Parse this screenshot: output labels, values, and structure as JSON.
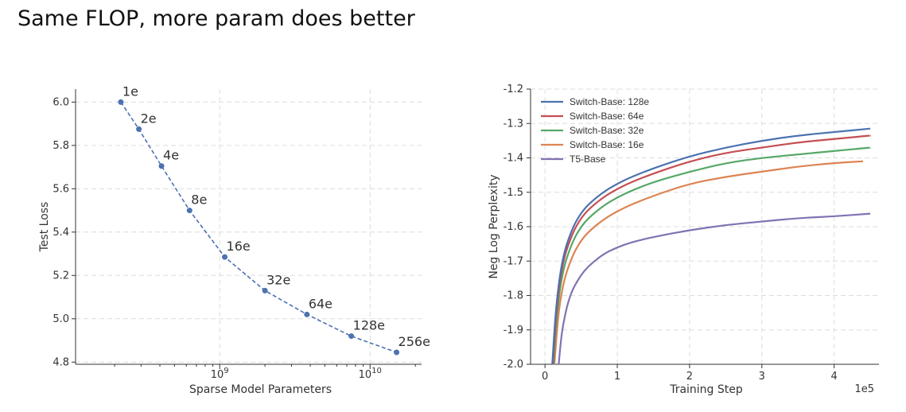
{
  "slide_title": "Same FLOP, more param does better",
  "chart_data": [
    {
      "type": "line",
      "xlabel": "Sparse Model Parameters",
      "ylabel": "Test Loss",
      "x_scale": "log",
      "xlim": [
        110000000,
        22000000000
      ],
      "ylim": [
        4.79,
        6.06
      ],
      "grid": true,
      "xticks": [
        {
          "value": 1000000000,
          "base": "10",
          "exp": "9"
        },
        {
          "value": 10000000000,
          "base": "10",
          "exp": "10"
        }
      ],
      "yticks": [
        "4.8",
        "5.0",
        "5.2",
        "5.4",
        "5.6",
        "5.8",
        "6.0"
      ],
      "line_color": "#4c72b0",
      "line_style": "dashed",
      "series": [
        {
          "points": [
            {
              "label": "1e",
              "x": 220000000,
              "y": 6.0
            },
            {
              "label": "2e",
              "x": 290000000,
              "y": 5.875
            },
            {
              "label": "4e",
              "x": 410000000,
              "y": 5.705
            },
            {
              "label": "8e",
              "x": 630000000,
              "y": 5.5
            },
            {
              "label": "16e",
              "x": 1080000000,
              "y": 5.285
            },
            {
              "label": "32e",
              "x": 2000000000,
              "y": 5.13
            },
            {
              "label": "64e",
              "x": 3800000000,
              "y": 5.02
            },
            {
              "label": "128e",
              "x": 7500000000,
              "y": 4.92
            },
            {
              "label": "256e",
              "x": 15000000000,
              "y": 4.845
            }
          ]
        }
      ]
    },
    {
      "type": "line",
      "xlabel": "Training Step",
      "ylabel": "Neg Log Perplexity",
      "x_multiplier": "1e5",
      "xlim": [
        -0.2,
        4.62
      ],
      "ylim": [
        -2.0,
        -1.2
      ],
      "grid": true,
      "xticks": [
        "0",
        "1",
        "2",
        "3",
        "4"
      ],
      "yticks": [
        "-1.2",
        "-1.3",
        "-1.4",
        "-1.5",
        "-1.6",
        "-1.7",
        "-1.8",
        "-1.9",
        "-2.0"
      ],
      "legend_position": "top-left",
      "series": [
        {
          "name": "Switch-Base: 128e",
          "color": "#4c72b0",
          "x": [
            0.1,
            0.15,
            0.2,
            0.25,
            0.3,
            0.4,
            0.5,
            0.6,
            0.8,
            1.0,
            1.2,
            1.5,
            2.0,
            2.5,
            3.0,
            3.5,
            4.0,
            4.5
          ],
          "y": [
            -2.0,
            -1.84,
            -1.75,
            -1.69,
            -1.65,
            -1.595,
            -1.56,
            -1.535,
            -1.5,
            -1.475,
            -1.455,
            -1.43,
            -1.395,
            -1.37,
            -1.35,
            -1.335,
            -1.325,
            -1.315
          ]
        },
        {
          "name": "Switch-Base: 64e",
          "color": "#c44e52",
          "x": [
            0.11,
            0.15,
            0.2,
            0.25,
            0.3,
            0.4,
            0.5,
            0.6,
            0.8,
            1.0,
            1.2,
            1.5,
            2.0,
            2.5,
            3.0,
            3.5,
            4.0,
            4.5
          ],
          "y": [
            -2.0,
            -1.86,
            -1.765,
            -1.705,
            -1.665,
            -1.61,
            -1.575,
            -1.55,
            -1.515,
            -1.49,
            -1.47,
            -1.445,
            -1.41,
            -1.385,
            -1.37,
            -1.355,
            -1.345,
            -1.335
          ]
        },
        {
          "name": "Switch-Base: 32e",
          "color": "#55a868",
          "x": [
            0.12,
            0.15,
            0.2,
            0.25,
            0.3,
            0.4,
            0.5,
            0.6,
            0.8,
            1.0,
            1.2,
            1.5,
            2.0,
            2.5,
            3.0,
            3.5,
            4.0,
            4.5
          ],
          "y": [
            -2.0,
            -1.89,
            -1.79,
            -1.73,
            -1.69,
            -1.635,
            -1.6,
            -1.575,
            -1.54,
            -1.515,
            -1.495,
            -1.47,
            -1.44,
            -1.415,
            -1.4,
            -1.39,
            -1.38,
            -1.37
          ]
        },
        {
          "name": "Switch-Base: 16e",
          "color": "#dd8452",
          "x": [
            0.13,
            0.17,
            0.2,
            0.25,
            0.3,
            0.4,
            0.5,
            0.6,
            0.8,
            1.0,
            1.2,
            1.5,
            2.0,
            2.5,
            3.0,
            3.5,
            4.0,
            4.4
          ],
          "y": [
            -2.0,
            -1.89,
            -1.83,
            -1.77,
            -1.73,
            -1.675,
            -1.64,
            -1.615,
            -1.58,
            -1.555,
            -1.535,
            -1.51,
            -1.475,
            -1.455,
            -1.44,
            -1.425,
            -1.415,
            -1.41
          ]
        },
        {
          "name": "T5-Base",
          "color": "#8172b2",
          "x": [
            0.19,
            0.22,
            0.25,
            0.3,
            0.35,
            0.4,
            0.5,
            0.6,
            0.8,
            1.0,
            1.2,
            1.5,
            2.0,
            2.5,
            3.0,
            3.5,
            4.0,
            4.5
          ],
          "y": [
            -2.0,
            -1.93,
            -1.885,
            -1.835,
            -1.8,
            -1.775,
            -1.74,
            -1.715,
            -1.68,
            -1.66,
            -1.645,
            -1.63,
            -1.61,
            -1.595,
            -1.585,
            -1.575,
            -1.57,
            -1.562
          ]
        }
      ]
    }
  ]
}
